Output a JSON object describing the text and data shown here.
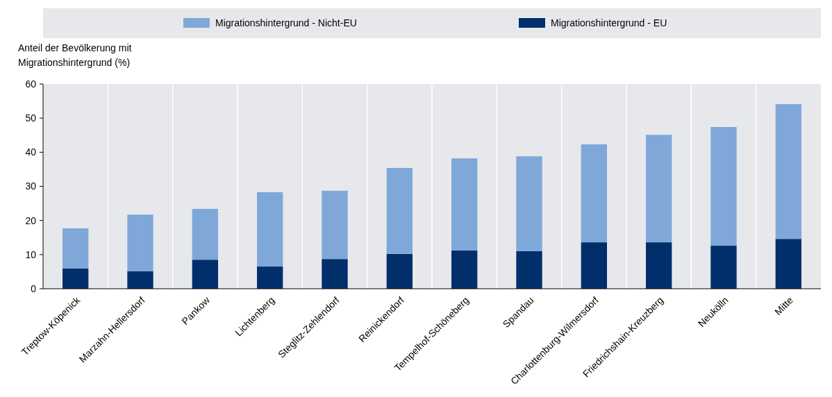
{
  "chart_data": {
    "type": "bar",
    "stacked": true,
    "ylabel": "Anteil der Bevölkerung mit Migrationshintergrund (%)",
    "categories": [
      "Treptow-Köpenick",
      "Marzahn-Hellersdorf",
      "Pankow",
      "Lichtenberg",
      "Steglitz-Zehlendorf",
      "Reinickendorf",
      "Tempelhof-Schöneberg",
      "Spandau",
      "Charlottenburg-Wilmersdorf",
      "Friedrichshain-Kreuzberg",
      "Neukölln",
      "Mitte"
    ],
    "series": [
      {
        "name": "Migrationshintergrund - EU",
        "color": "#002f6c",
        "values": [
          5.9,
          5.1,
          8.5,
          6.5,
          8.7,
          10.2,
          11.2,
          11.0,
          13.6,
          13.6,
          12.6,
          14.6
        ]
      },
      {
        "name": "Migrationshintergrund - Nicht-EU",
        "color": "#7fa8d9",
        "values": [
          11.8,
          16.6,
          14.9,
          21.8,
          20.0,
          25.2,
          27.0,
          27.8,
          28.7,
          31.5,
          34.8,
          39.5
        ]
      }
    ],
    "ylim": [
      0,
      60
    ],
    "yticks": [
      0,
      10,
      20,
      30,
      40,
      50,
      60
    ],
    "grid": "x",
    "legend": "top"
  }
}
